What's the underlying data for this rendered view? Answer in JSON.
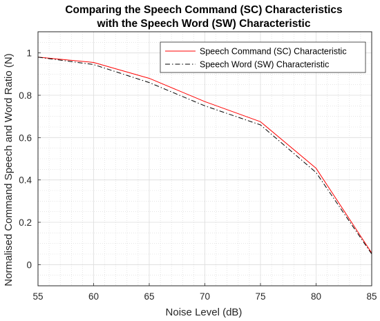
{
  "chart_data": {
    "type": "line",
    "title_line1": "Comparing the Speech Command (SC) Characteristics",
    "title_line2": "with the Speech Word (SW) Characteristic",
    "xlabel": "Noise Level (dB)",
    "ylabel": "Normalised Command Speech and Word Ratio (N)",
    "xlim": [
      55,
      85
    ],
    "ylim": [
      -0.1,
      1.1
    ],
    "xticks": [
      55,
      60,
      65,
      70,
      75,
      80,
      85
    ],
    "yticks": [
      0,
      0.2,
      0.4,
      0.6,
      0.8,
      1
    ],
    "ytick_labels": [
      "0",
      "0.2",
      "0.4",
      "0.6",
      "0.8",
      "1"
    ],
    "x": [
      55,
      60,
      65,
      70,
      75,
      80,
      85
    ],
    "grid": true,
    "minor_grid": true,
    "legend_position": "top-right",
    "series": [
      {
        "name": "Speech Command (SC) Characteristic",
        "values": [
          0.98,
          0.955,
          0.88,
          0.77,
          0.675,
          0.455,
          0.055
        ],
        "color": "#ff0000",
        "style": "solid"
      },
      {
        "name": "Speech Word (SW) Characteristic",
        "values": [
          0.98,
          0.945,
          0.86,
          0.75,
          0.66,
          0.435,
          0.05
        ],
        "color": "#000000",
        "style": "dashdot"
      }
    ]
  }
}
